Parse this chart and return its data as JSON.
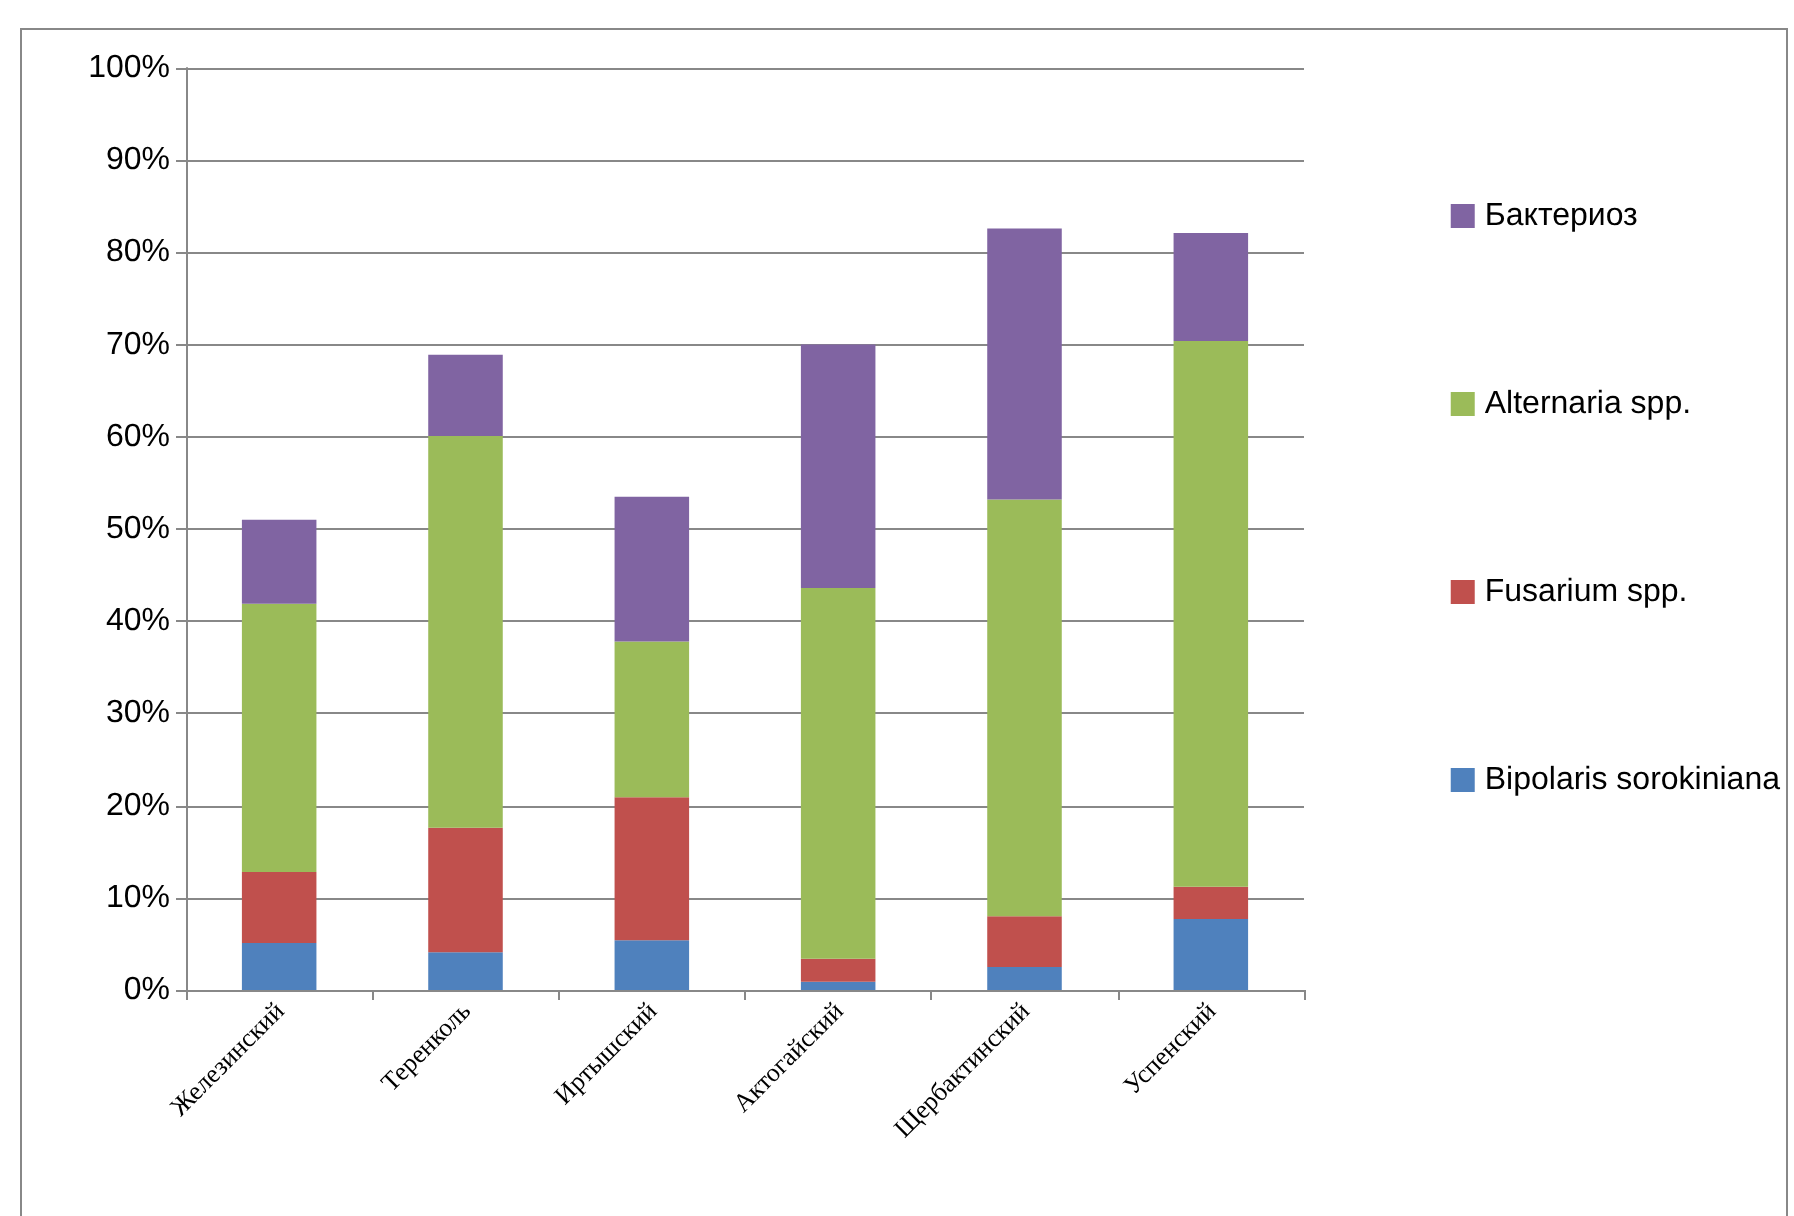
{
  "chart_data": {
    "type": "bar",
    "stacked": true,
    "categories": [
      "Железинский",
      "Теренколь",
      "Иртышский",
      "Актогайский",
      "Щербактинский",
      "Успенский"
    ],
    "series": [
      {
        "name": "Bipolaris sorokiniana",
        "color": "#4f81bd",
        "values": [
          5.1,
          4.1,
          5.4,
          0.9,
          2.5,
          7.7
        ]
      },
      {
        "name": "Fusarium spp.",
        "color": "#c0504d",
        "values": [
          7.7,
          13.5,
          15.5,
          2.5,
          5.5,
          3.5
        ]
      },
      {
        "name": "Alternaria spp.",
        "color": "#9bbb59",
        "values": [
          29.1,
          42.5,
          16.9,
          40.2,
          45.2,
          59.2
        ]
      },
      {
        "name": "Бактериоз",
        "color": "#8064a2",
        "values": [
          9.1,
          8.8,
          15.7,
          26.4,
          29.4,
          11.7
        ]
      }
    ],
    "ylim": [
      0,
      100
    ],
    "yticks": [
      {
        "value": 0,
        "label": "0%"
      },
      {
        "value": 10,
        "label": "10%"
      },
      {
        "value": 20,
        "label": "20%"
      },
      {
        "value": 30,
        "label": "30%"
      },
      {
        "value": 40,
        "label": "40%"
      },
      {
        "value": 50,
        "label": "50%"
      },
      {
        "value": 60,
        "label": "60%"
      },
      {
        "value": 70,
        "label": "70%"
      },
      {
        "value": 80,
        "label": "80%"
      },
      {
        "value": 90,
        "label": "90%"
      },
      {
        "value": 100,
        "label": "100%"
      }
    ],
    "grid": "y",
    "legend": "right"
  }
}
